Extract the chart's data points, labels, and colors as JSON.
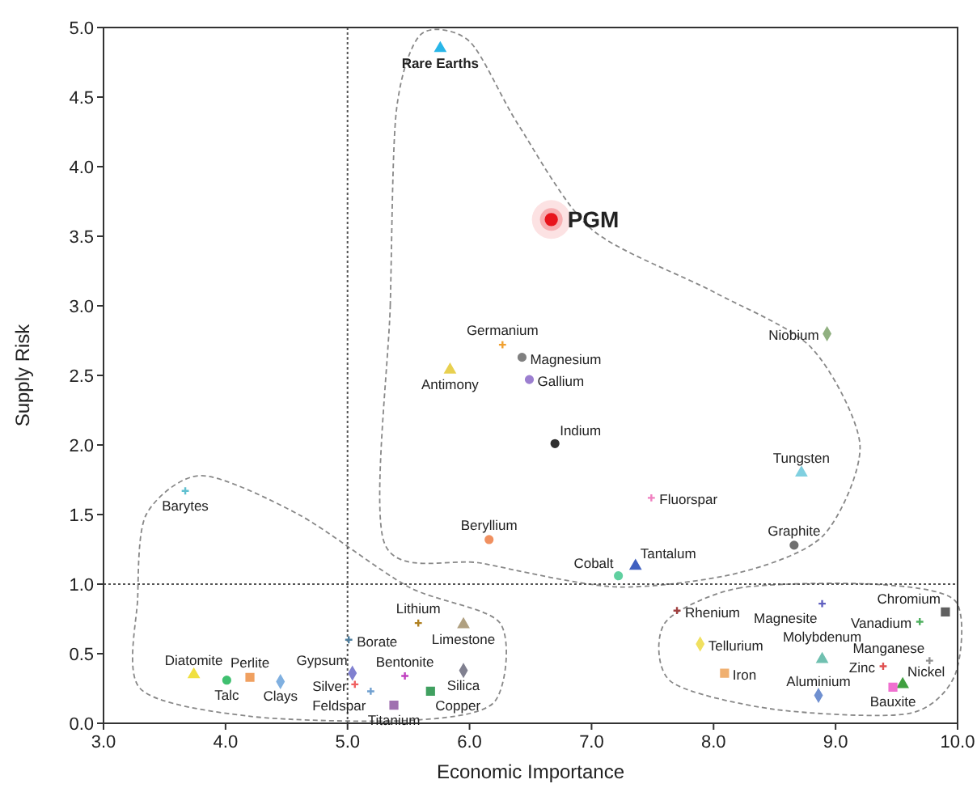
{
  "chart_data": {
    "type": "scatter",
    "xlabel": "Economic Importance",
    "ylabel": "Supply Risk",
    "xlim": [
      3,
      10
    ],
    "ylim": [
      0,
      5
    ],
    "xticks": [
      {
        "value": 3,
        "label": "3.0"
      },
      {
        "value": 4,
        "label": "4.0"
      },
      {
        "value": 5,
        "label": "5.0"
      },
      {
        "value": 6,
        "label": "6.0"
      },
      {
        "value": 7,
        "label": "7.0"
      },
      {
        "value": 8,
        "label": "8.0"
      },
      {
        "value": 9,
        "label": "9.0"
      },
      {
        "value": 10,
        "label": "10.0"
      }
    ],
    "yticks": [
      {
        "value": 0,
        "label": "0.0"
      },
      {
        "value": 0.5,
        "label": "0.5"
      },
      {
        "value": 1,
        "label": "1.0"
      },
      {
        "value": 1.5,
        "label": "1.5"
      },
      {
        "value": 2,
        "label": "2.0"
      },
      {
        "value": 2.5,
        "label": "2.5"
      },
      {
        "value": 3,
        "label": "3.0"
      },
      {
        "value": 3.5,
        "label": "3.5"
      },
      {
        "value": 4,
        "label": "4.0"
      },
      {
        "value": 4.5,
        "label": "4.5"
      },
      {
        "value": 5,
        "label": "5.0"
      }
    ],
    "grid": false,
    "ref_lines": [
      {
        "axis": "x",
        "value": 5,
        "line_style": "dotted",
        "color": "#555555"
      },
      {
        "axis": "y",
        "value": 1,
        "line_style": "dotted",
        "color": "#555555"
      }
    ],
    "series": [
      {
        "name": "Rare Earths",
        "color": "#29b6e8",
        "marker": "triangle",
        "x": [
          5.76
        ],
        "values": [
          4.85
        ]
      },
      {
        "name": "PGM",
        "color": "#e8141c",
        "marker": "circle",
        "x": [
          6.67
        ],
        "values": [
          3.62
        ]
      },
      {
        "name": "Germanium",
        "color": "#f0a030",
        "marker": "cross",
        "x": [
          6.27
        ],
        "values": [
          2.72
        ]
      },
      {
        "name": "Magnesium",
        "color": "#808080",
        "marker": "circle",
        "x": [
          6.43
        ],
        "values": [
          2.63
        ]
      },
      {
        "name": "Gallium",
        "color": "#9c7fd0",
        "marker": "circle",
        "x": [
          6.49
        ],
        "values": [
          2.47
        ]
      },
      {
        "name": "Antimony",
        "color": "#e8d050",
        "marker": "triangle",
        "x": [
          5.84
        ],
        "values": [
          2.54
        ]
      },
      {
        "name": "Indium",
        "color": "#303030",
        "marker": "circle",
        "x": [
          6.7
        ],
        "values": [
          2.01
        ]
      },
      {
        "name": "Niobium",
        "color": "#90b080",
        "marker": "diamond",
        "x": [
          8.93
        ],
        "values": [
          2.8
        ]
      },
      {
        "name": "Tungsten",
        "color": "#80d0e0",
        "marker": "triangle",
        "x": [
          8.72
        ],
        "values": [
          1.8
        ]
      },
      {
        "name": "Fluorspar",
        "color": "#f080c0",
        "marker": "cross",
        "x": [
          7.49
        ],
        "values": [
          1.62
        ]
      },
      {
        "name": "Graphite",
        "color": "#707070",
        "marker": "circle",
        "x": [
          8.66
        ],
        "values": [
          1.28
        ]
      },
      {
        "name": "Cobalt",
        "color": "#60d0a0",
        "marker": "circle",
        "x": [
          7.22
        ],
        "values": [
          1.06
        ]
      },
      {
        "name": "Tantalum",
        "color": "#4060c0",
        "marker": "triangle",
        "x": [
          7.36
        ],
        "values": [
          1.13
        ]
      },
      {
        "name": "Rhenium",
        "color": "#a04040",
        "marker": "cross",
        "x": [
          7.7
        ],
        "values": [
          0.81
        ]
      },
      {
        "name": "Magnesite",
        "color": "#6060c0",
        "marker": "cross",
        "x": [
          8.89
        ],
        "values": [
          0.86
        ]
      },
      {
        "name": "Chromium",
        "color": "#606060",
        "marker": "square",
        "x": [
          9.9
        ],
        "values": [
          0.8
        ]
      },
      {
        "name": "Vanadium",
        "color": "#50b060",
        "marker": "cross",
        "x": [
          9.69
        ],
        "values": [
          0.73
        ]
      },
      {
        "name": "Tellurium",
        "color": "#f0e060",
        "marker": "diamond",
        "x": [
          7.89
        ],
        "values": [
          0.57
        ]
      },
      {
        "name": "Molybdenum",
        "color": "#70c0b0",
        "marker": "triangle",
        "x": [
          8.89
        ],
        "values": [
          0.46
        ]
      },
      {
        "name": "Manganese",
        "color": "#909090",
        "marker": "cross",
        "x": [
          9.77
        ],
        "values": [
          0.45
        ]
      },
      {
        "name": "Zinc",
        "color": "#e05050",
        "marker": "cross",
        "x": [
          9.39
        ],
        "values": [
          0.41
        ]
      },
      {
        "name": "Nickel",
        "color": "#40a040",
        "marker": "triangle",
        "x": [
          9.55
        ],
        "values": [
          0.28
        ]
      },
      {
        "name": "Bauxite",
        "color": "#f070d0",
        "marker": "square",
        "x": [
          9.47
        ],
        "values": [
          0.26
        ]
      },
      {
        "name": "Iron",
        "color": "#f0b070",
        "marker": "square",
        "x": [
          8.09
        ],
        "values": [
          0.36
        ]
      },
      {
        "name": "Aluminium",
        "color": "#7090d0",
        "marker": "diamond",
        "x": [
          8.86
        ],
        "values": [
          0.2
        ]
      },
      {
        "name": "Barytes",
        "color": "#60c0d0",
        "marker": "cross",
        "x": [
          3.67
        ],
        "values": [
          1.67
        ]
      },
      {
        "name": "Beryllium",
        "color": "#f09060",
        "marker": "circle",
        "x": [
          6.16
        ],
        "values": [
          1.32
        ]
      },
      {
        "name": "Lithium",
        "color": "#b08020",
        "marker": "cross",
        "x": [
          5.58
        ],
        "values": [
          0.72
        ]
      },
      {
        "name": "Limestone",
        "color": "#b0a080",
        "marker": "triangle",
        "x": [
          5.95
        ],
        "values": [
          0.71
        ]
      },
      {
        "name": "Borate",
        "color": "#5080a0",
        "marker": "cross",
        "x": [
          5.01
        ],
        "values": [
          0.6
        ]
      },
      {
        "name": "Diatomite",
        "color": "#f0e040",
        "marker": "triangle",
        "x": [
          3.74
        ],
        "values": [
          0.35
        ]
      },
      {
        "name": "Talc",
        "color": "#40c070",
        "marker": "circle",
        "x": [
          4.01
        ],
        "values": [
          0.31
        ]
      },
      {
        "name": "Perlite",
        "color": "#f0a060",
        "marker": "square",
        "x": [
          4.2
        ],
        "values": [
          0.33
        ]
      },
      {
        "name": "Clays",
        "color": "#80b0e0",
        "marker": "diamond",
        "x": [
          4.45
        ],
        "values": [
          0.3
        ]
      },
      {
        "name": "Gypsum",
        "color": "#8080d0",
        "marker": "diamond",
        "x": [
          5.04
        ],
        "values": [
          0.36
        ]
      },
      {
        "name": "Silver",
        "color": "#f06060",
        "marker": "cross",
        "x": [
          5.06
        ],
        "values": [
          0.28
        ]
      },
      {
        "name": "Feldspar",
        "color": "#70a0d0",
        "marker": "cross",
        "x": [
          5.19
        ],
        "values": [
          0.23
        ]
      },
      {
        "name": "Bentonite",
        "color": "#c040c0",
        "marker": "cross",
        "x": [
          5.47
        ],
        "values": [
          0.34
        ]
      },
      {
        "name": "Silica",
        "color": "#808090",
        "marker": "diamond",
        "x": [
          5.95
        ],
        "values": [
          0.38
        ]
      },
      {
        "name": "Copper",
        "color": "#40a060",
        "marker": "square",
        "x": [
          5.68
        ],
        "values": [
          0.23
        ]
      },
      {
        "name": "Titanium",
        "color": "#a070b0",
        "marker": "square",
        "x": [
          5.38
        ],
        "values": [
          0.13
        ]
      }
    ]
  }
}
